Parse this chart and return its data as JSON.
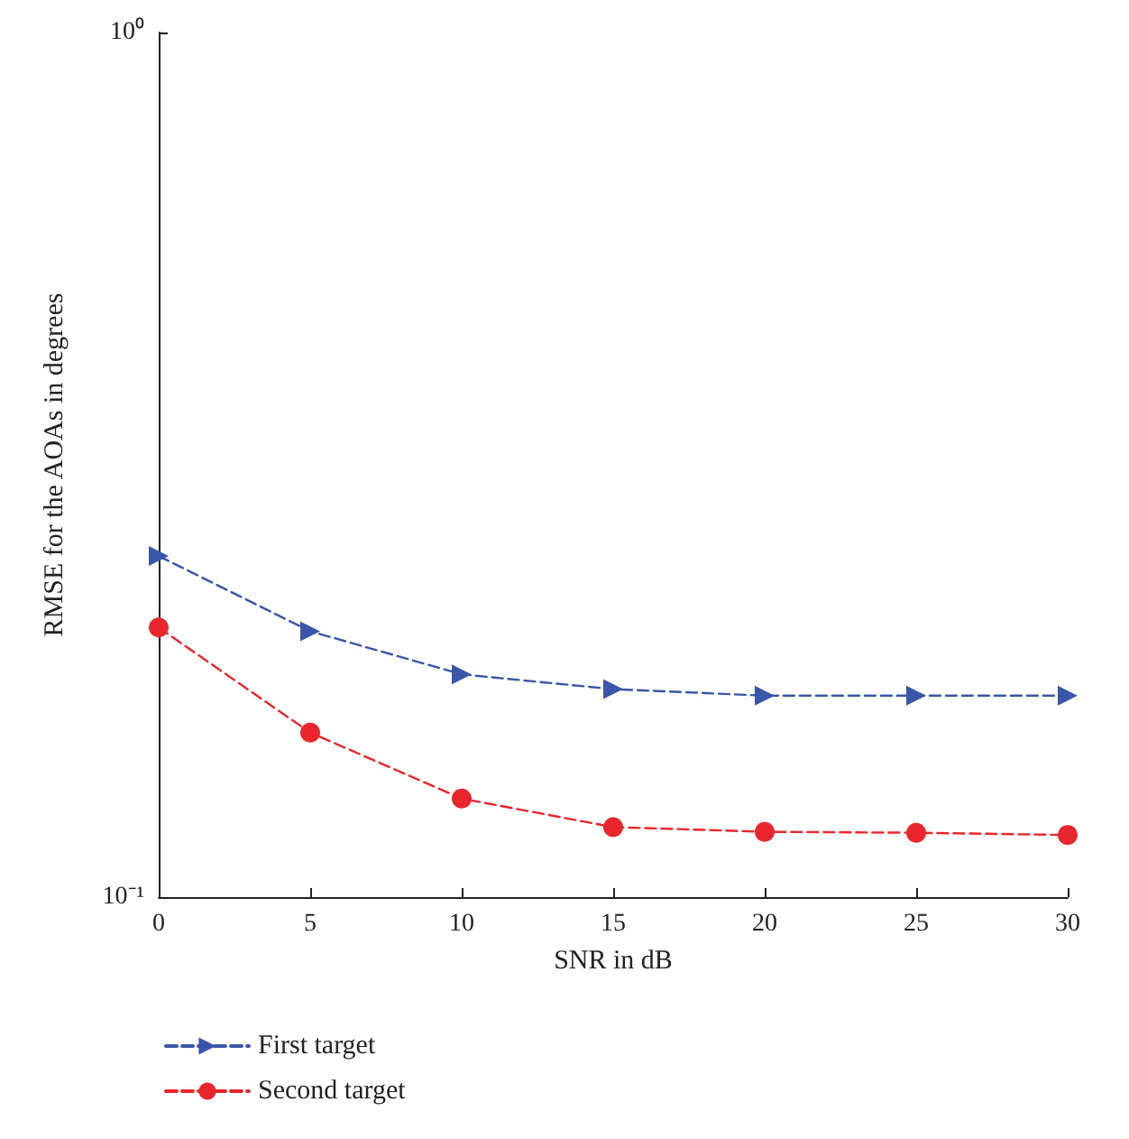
{
  "chart_data": {
    "type": "line",
    "xlabel": "SNR in dB",
    "ylabel": "RMSE for the AOAs in degrees",
    "x": [
      0,
      5,
      10,
      15,
      20,
      25,
      30
    ],
    "series": [
      {
        "name": "First target",
        "color": "#3a56a8",
        "marker": "triangle",
        "line_style": "dashed",
        "values": [
          0.248,
          0.203,
          0.181,
          0.174,
          0.171,
          0.171,
          0.171
        ]
      },
      {
        "name": "Second target",
        "color": "#e8262b",
        "marker": "circle",
        "line_style": "dashed",
        "values": [
          0.205,
          0.155,
          0.13,
          0.1205,
          0.119,
          0.1187,
          0.118
        ]
      }
    ],
    "xlim": [
      0,
      30
    ],
    "xticks": [
      0,
      5,
      10,
      15,
      20,
      25,
      30
    ],
    "ylim": [
      0.1,
      1
    ],
    "yticks": [
      {
        "value": 0.1,
        "label": "10⁻¹"
      },
      {
        "value": 1,
        "label": "10⁰"
      }
    ],
    "log": "y",
    "grid": false,
    "legend": "bottom left"
  }
}
